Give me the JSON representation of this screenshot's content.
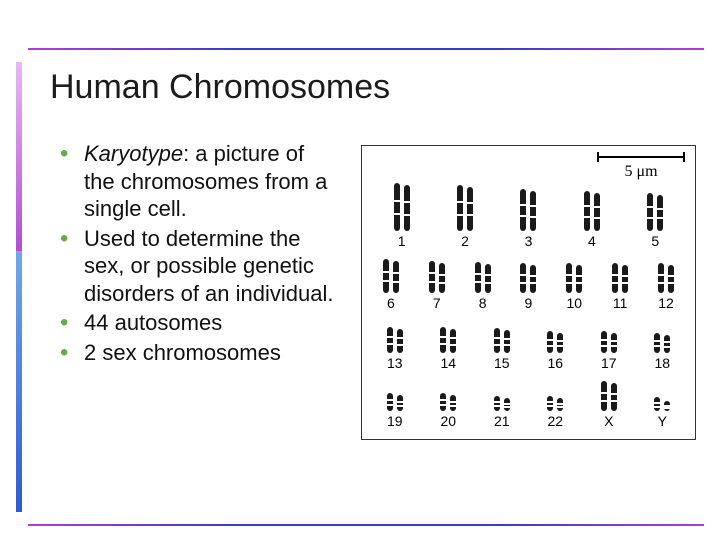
{
  "title": "Human Chromosomes",
  "bullets": [
    {
      "term": "Karyotype",
      "rest": ": a picture of the chromosomes from a single cell."
    },
    {
      "text": "Used to determine the sex, or possible genetic disorders of an individual."
    },
    {
      "text": "44 autosomes"
    },
    {
      "text": "2 sex chromosomes"
    }
  ],
  "figure": {
    "scale_label": "5 μm",
    "rows": [
      {
        "labels": [
          "1",
          "2",
          "3",
          "4",
          "5"
        ],
        "heights": [
          48,
          46,
          42,
          40,
          38
        ]
      },
      {
        "labels": [
          "6",
          "7",
          "8",
          "9",
          "10",
          "11",
          "12"
        ],
        "heights": [
          34,
          32,
          31,
          30,
          30,
          30,
          30
        ]
      },
      {
        "labels": [
          "13",
          "14",
          "15",
          "16",
          "17",
          "18"
        ],
        "heights": [
          26,
          26,
          25,
          22,
          22,
          20
        ]
      },
      {
        "labels": [
          "19",
          "20",
          "21",
          "22",
          "X",
          "Y"
        ],
        "heights": [
          18,
          18,
          15,
          15,
          30,
          14
        ]
      }
    ]
  },
  "colors": {
    "bullet": "#6aa84f",
    "rule_grad_a": "#b43bd4",
    "rule_grad_b": "#3b3bd4"
  }
}
